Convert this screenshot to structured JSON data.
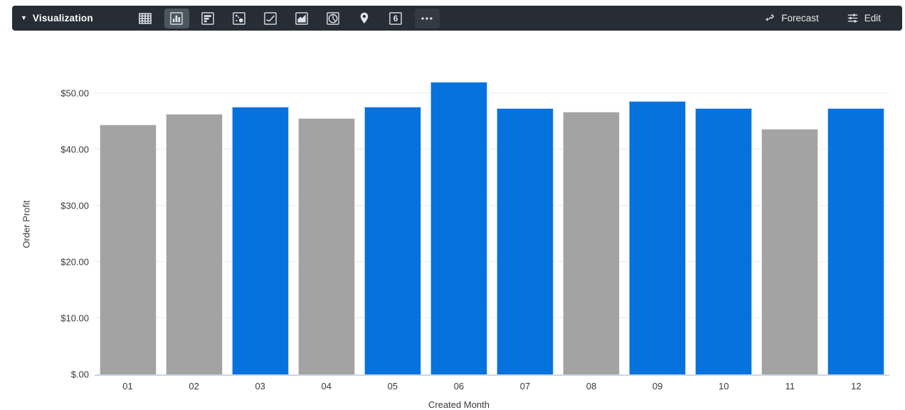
{
  "colors": {
    "toolbar_bg": "#272d34",
    "selected_chip_bg": "#4d555f",
    "icon": "#dfe2e6",
    "bar_blue": "#0672dd",
    "bar_gray": "#a3a3a3",
    "gridline": "#ebebeb",
    "axis_line": "#ccd5e4",
    "axis_text": "#3a3a3a"
  },
  "toolbar": {
    "visualization_label": "Visualization",
    "chart_types": [
      {
        "id": "table",
        "selected": false
      },
      {
        "id": "column",
        "selected": true
      },
      {
        "id": "bar",
        "selected": false
      },
      {
        "id": "scatter",
        "selected": false
      },
      {
        "id": "line",
        "selected": false
      },
      {
        "id": "area",
        "selected": false
      },
      {
        "id": "pie",
        "selected": false
      },
      {
        "id": "map",
        "selected": false
      },
      {
        "id": "single-value",
        "selected": false,
        "glyph": "6"
      },
      {
        "id": "more",
        "selected": false
      }
    ],
    "forecast_label": "Forecast",
    "edit_label": "Edit"
  },
  "chart_data": {
    "type": "bar",
    "title": "",
    "xlabel": "Created Month",
    "ylabel": "Order Profit",
    "categories": [
      "01",
      "02",
      "03",
      "04",
      "05",
      "06",
      "07",
      "08",
      "09",
      "10",
      "11",
      "12"
    ],
    "values": [
      44.5,
      46.4,
      47.6,
      45.6,
      47.6,
      52.0,
      47.3,
      46.7,
      48.6,
      47.3,
      43.7,
      47.3
    ],
    "bar_colors": [
      "gray",
      "gray",
      "blue",
      "gray",
      "blue",
      "blue",
      "blue",
      "gray",
      "blue",
      "blue",
      "gray",
      "blue"
    ],
    "y_ticks": [
      {
        "value": 50,
        "label": "$50.00"
      },
      {
        "value": 40,
        "label": "$40.00"
      },
      {
        "value": 30,
        "label": "$30.00"
      },
      {
        "value": 20,
        "label": "$20.00"
      },
      {
        "value": 10,
        "label": "$10.00"
      },
      {
        "value": 0,
        "label": "$.00"
      }
    ],
    "ylim": [
      0,
      53.3
    ],
    "grid": true,
    "legend": "none"
  }
}
